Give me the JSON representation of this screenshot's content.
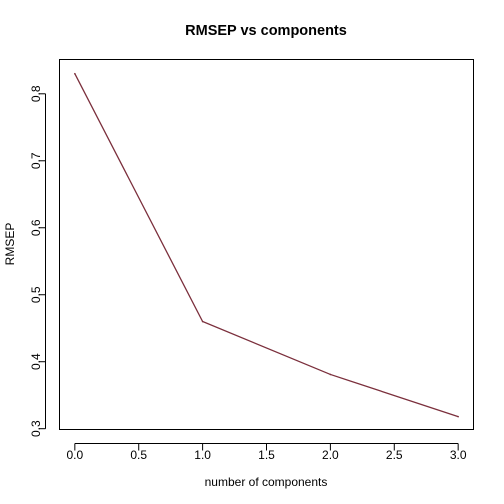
{
  "chart_data": {
    "type": "line",
    "title": "RMSEP vs components",
    "xlabel": "number of components",
    "ylabel": "RMSEP",
    "x": [
      0,
      1,
      2,
      3
    ],
    "series": [
      {
        "values": [
          0.83,
          0.46,
          0.381,
          0.318
        ],
        "color": "#7b2f3c"
      }
    ],
    "xticks": [
      0.0,
      0.5,
      1.0,
      1.5,
      2.0,
      2.5,
      3.0
    ],
    "xtick_labels": [
      "0.0",
      "0.5",
      "1.0",
      "1.5",
      "2.0",
      "2.5",
      "3.0"
    ],
    "yticks": [
      0.3,
      0.4,
      0.5,
      0.6,
      0.7,
      0.8
    ],
    "ytick_labels": [
      "0.3",
      "0.4",
      "0.5",
      "0.6",
      "0.7",
      "0.8"
    ],
    "xlim": [
      -0.12,
      3.12
    ],
    "ylim": [
      0.2988,
      0.8512
    ],
    "grid": false,
    "legend": "none"
  }
}
